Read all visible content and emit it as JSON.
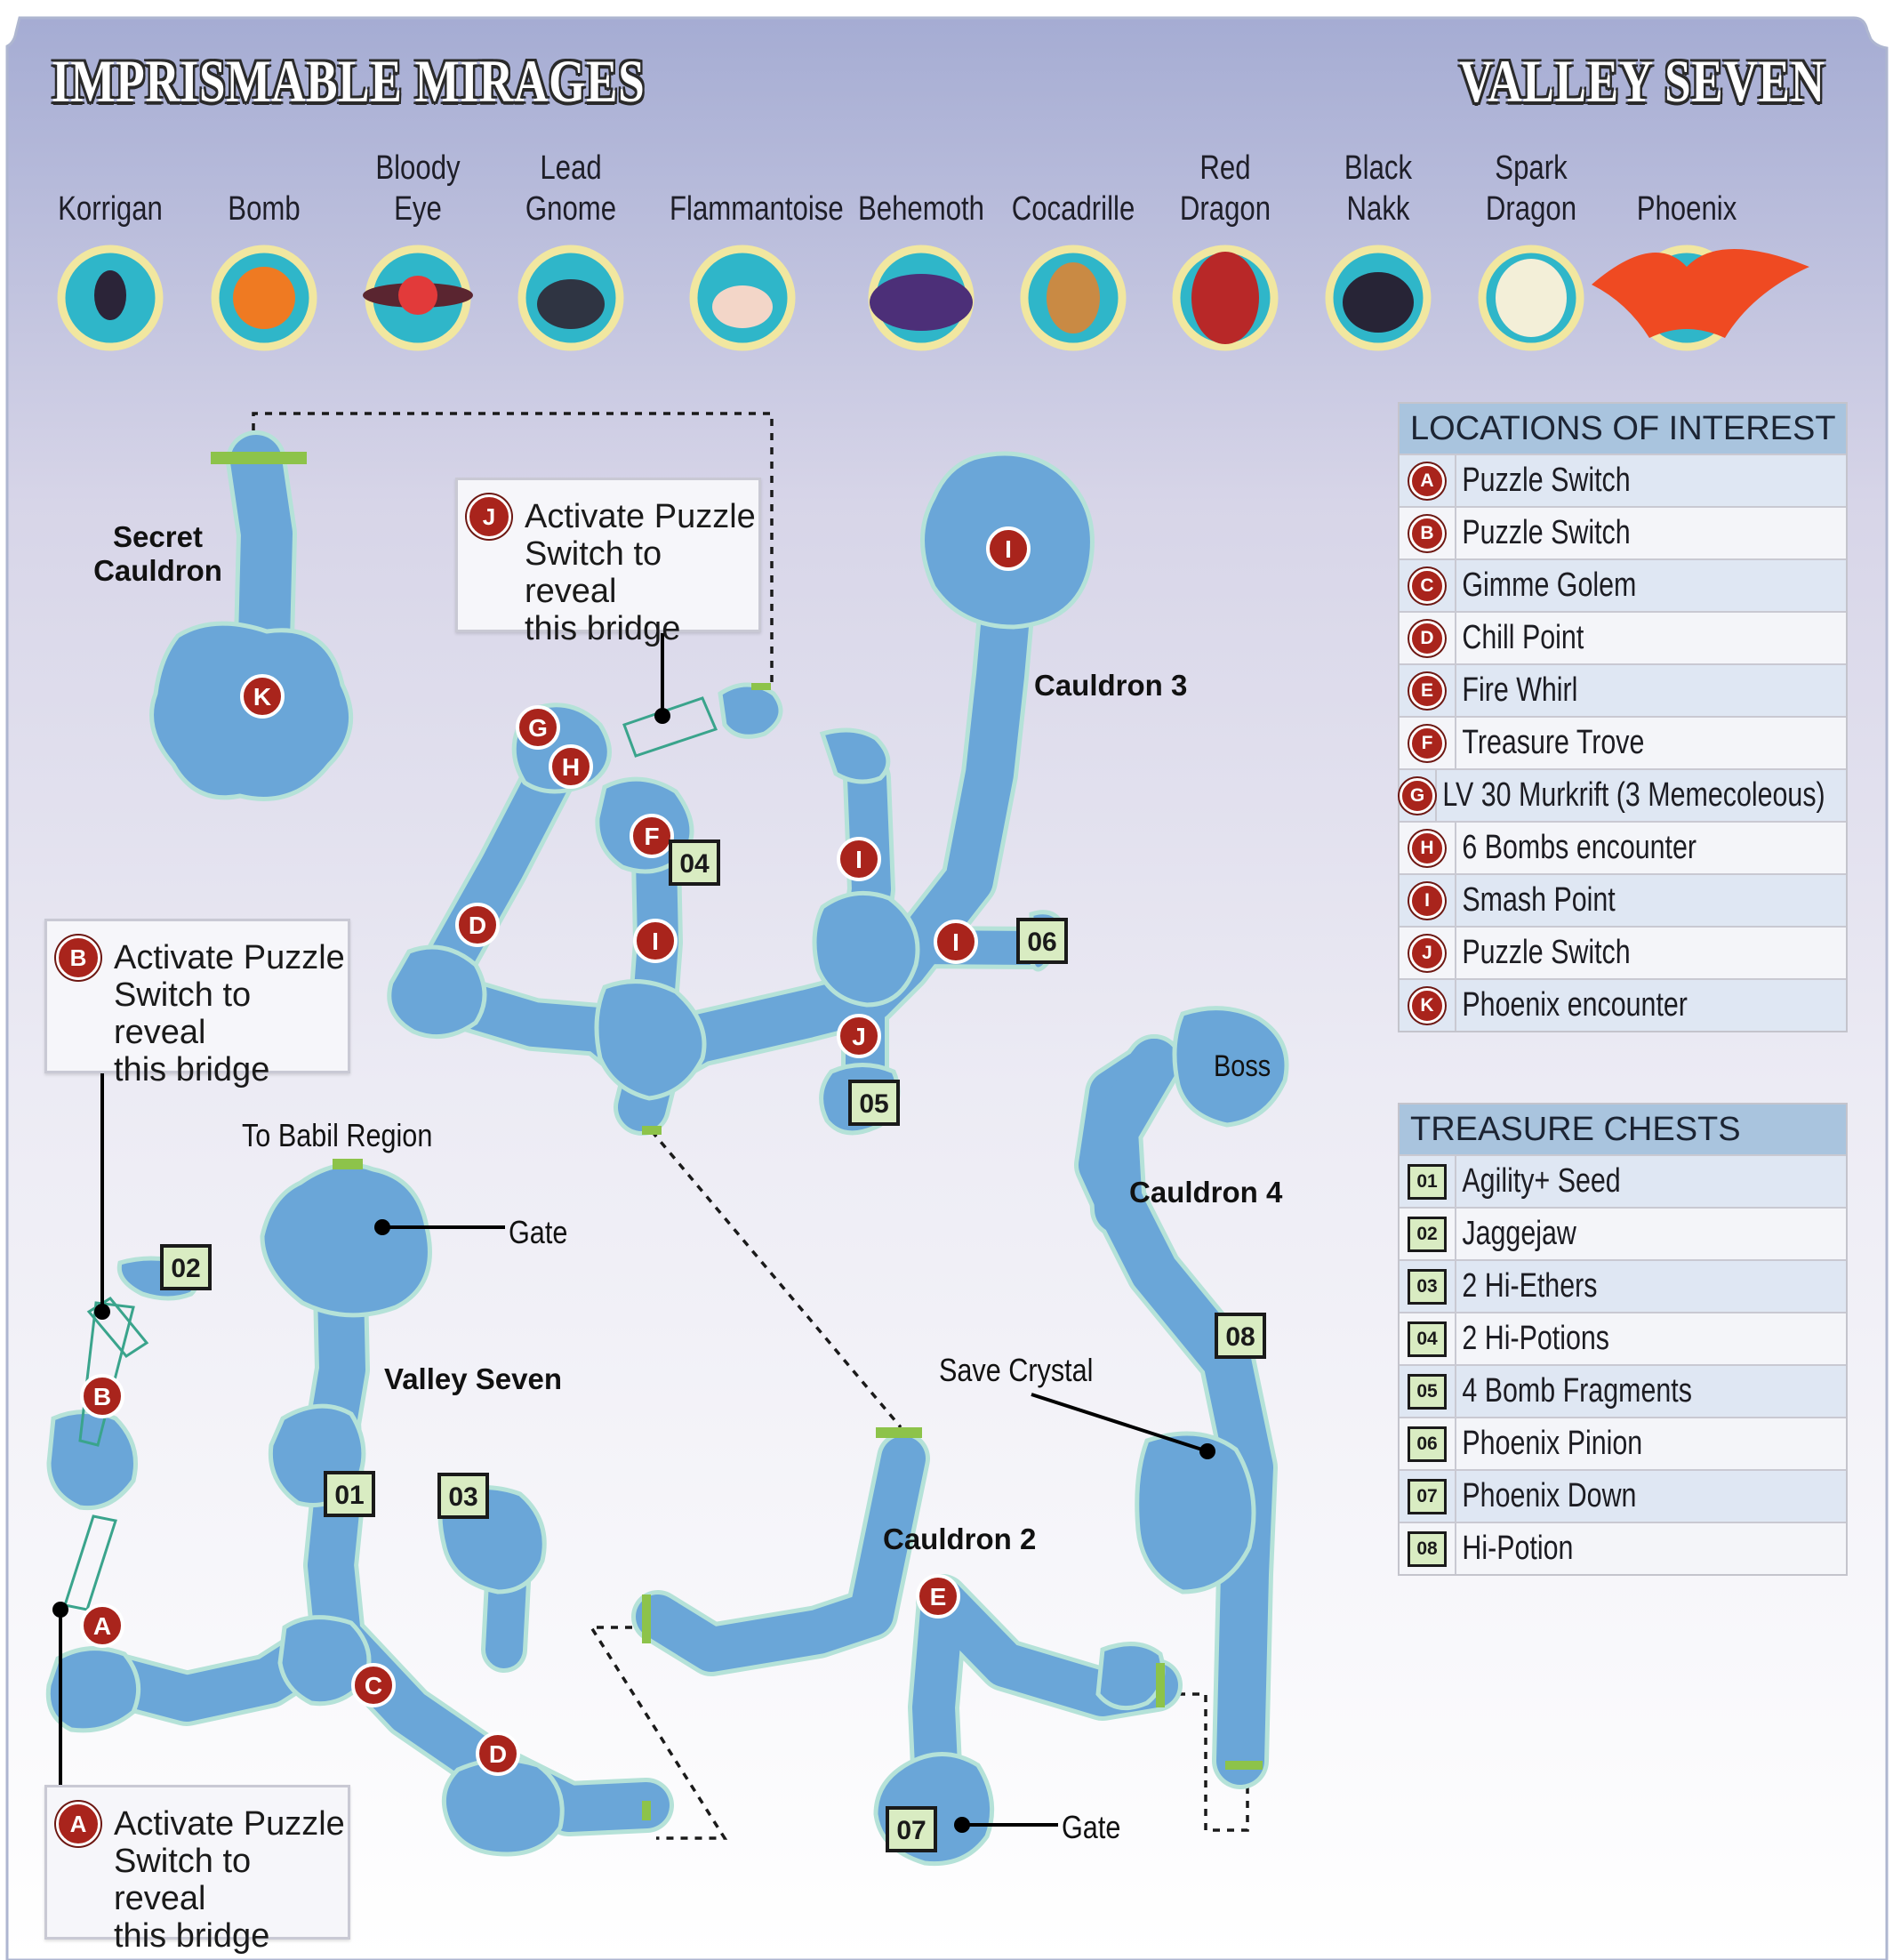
{
  "header": {
    "title_left": "IMPRISMABLE MIRAGES",
    "title_right": "VALLEY SEVEN"
  },
  "mirages": [
    {
      "name": "Korrigan",
      "icon": "korrigan-icon"
    },
    {
      "name": "Bomb",
      "icon": "bomb-icon"
    },
    {
      "name": "Bloody\nEye",
      "icon": "bloody-eye-icon"
    },
    {
      "name": "Lead\nGnome",
      "icon": "lead-gnome-icon"
    },
    {
      "name": "Flammantoise",
      "icon": "flammantoise-icon"
    },
    {
      "name": "Behemoth",
      "icon": "behemoth-icon"
    },
    {
      "name": "Cocadrille",
      "icon": "cocadrille-icon"
    },
    {
      "name": "Red\nDragon",
      "icon": "red-dragon-icon"
    },
    {
      "name": "Black\nNakk",
      "icon": "black-nakk-icon"
    },
    {
      "name": "Spark\nDragon",
      "icon": "spark-dragon-icon"
    },
    {
      "name": "Phoenix",
      "icon": "phoenix-icon"
    }
  ],
  "legend_locations": {
    "title": "LOCATIONS OF INTEREST",
    "items": [
      {
        "key": "A",
        "label": "Puzzle Switch"
      },
      {
        "key": "B",
        "label": "Puzzle Switch"
      },
      {
        "key": "C",
        "label": "Gimme Golem"
      },
      {
        "key": "D",
        "label": "Chill Point"
      },
      {
        "key": "E",
        "label": "Fire Whirl"
      },
      {
        "key": "F",
        "label": "Treasure Trove"
      },
      {
        "key": "G",
        "label": "LV 30 Murkrift (3 Memecoleous)"
      },
      {
        "key": "H",
        "label": "6 Bombs encounter"
      },
      {
        "key": "I",
        "label": "Smash Point"
      },
      {
        "key": "J",
        "label": "Puzzle Switch"
      },
      {
        "key": "K",
        "label": "Phoenix encounter"
      }
    ]
  },
  "legend_chests": {
    "title": "TREASURE CHESTS",
    "items": [
      {
        "key": "01",
        "label": "Agility+ Seed"
      },
      {
        "key": "02",
        "label": "Jaggejaw"
      },
      {
        "key": "03",
        "label": "2 Hi-Ethers"
      },
      {
        "key": "04",
        "label": "2 Hi-Potions"
      },
      {
        "key": "05",
        "label": "4 Bomb Fragments"
      },
      {
        "key": "06",
        "label": "Phoenix Pinion"
      },
      {
        "key": "07",
        "label": "Phoenix Down"
      },
      {
        "key": "08",
        "label": "Hi-Potion"
      }
    ]
  },
  "area_labels": {
    "secret_cauldron": "Secret\nCauldron",
    "cauldron_2": "Cauldron 2",
    "cauldron_3": "Cauldron 3",
    "cauldron_4": "Cauldron 4",
    "valley_seven": "Valley Seven",
    "boss": "Boss",
    "to_babil": "To Babil Region",
    "gate": "Gate",
    "save_crystal": "Save Crystal"
  },
  "callouts": {
    "a": {
      "key": "A",
      "text": "Activate Puzzle\nSwitch to reveal\nthis bridge"
    },
    "b": {
      "key": "B",
      "text": "Activate Puzzle\nSwitch to reveal\nthis bridge"
    },
    "j": {
      "key": "J",
      "text": "Activate Puzzle\nSwitch to reveal\nthis bridge"
    }
  },
  "map_markers": [
    "A",
    "B",
    "C",
    "D",
    "D",
    "E",
    "F",
    "G",
    "H",
    "I",
    "I",
    "I",
    "I",
    "J",
    "K"
  ],
  "map_chests": [
    "01",
    "02",
    "03",
    "04",
    "05",
    "06",
    "07",
    "08"
  ],
  "colors": {
    "water": "#6aa6d8",
    "water_edge": "#b5e2d8",
    "marker": "#a9241c",
    "chest_fill": "#d9ecc2",
    "exit": "#8dc34a",
    "header_top": "#a5acd3",
    "legend_head": "#a9c4de"
  }
}
